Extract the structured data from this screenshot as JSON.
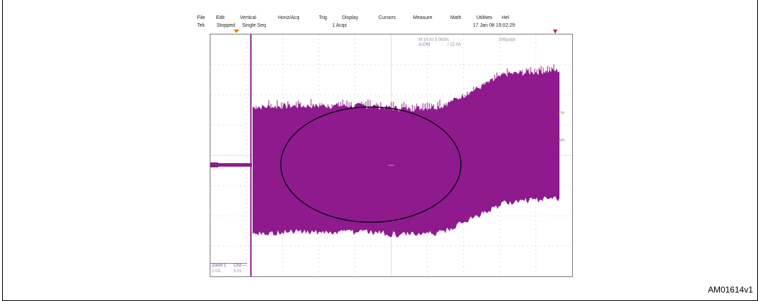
{
  "figure_id": "AM01614v1",
  "menu": {
    "items": [
      "File",
      "Edit",
      "Vertical",
      "Horiz/Acq",
      "Trig",
      "Display",
      "Cursors",
      "Measure",
      "Math",
      "Utilities",
      "Hel"
    ]
  },
  "status": {
    "brand": "Tek",
    "run_state": "Stopped",
    "mode": "Single Seq",
    "acqs": "1 Acqs",
    "datetime": "17 Jan 08 15:02:29"
  },
  "readout": {
    "timebase": "M 10.0s 5.0kS/s",
    "sample_interval": "200µs/pt",
    "trigger_channel": "A  Ch3",
    "trigger_level": "/  12.0A"
  },
  "side_labels": {
    "fre": "Fre",
    "amp": "Am"
  },
  "bottom": {
    "zoom_label": "Zoom 1",
    "zoom_scale": "1.0A",
    "channel_label": "Ch3 —",
    "channel_time": "5.0s"
  },
  "colors": {
    "waveform": "#8e1a8e",
    "grid": "#b4b4b4",
    "ellipse": "#000000"
  }
}
